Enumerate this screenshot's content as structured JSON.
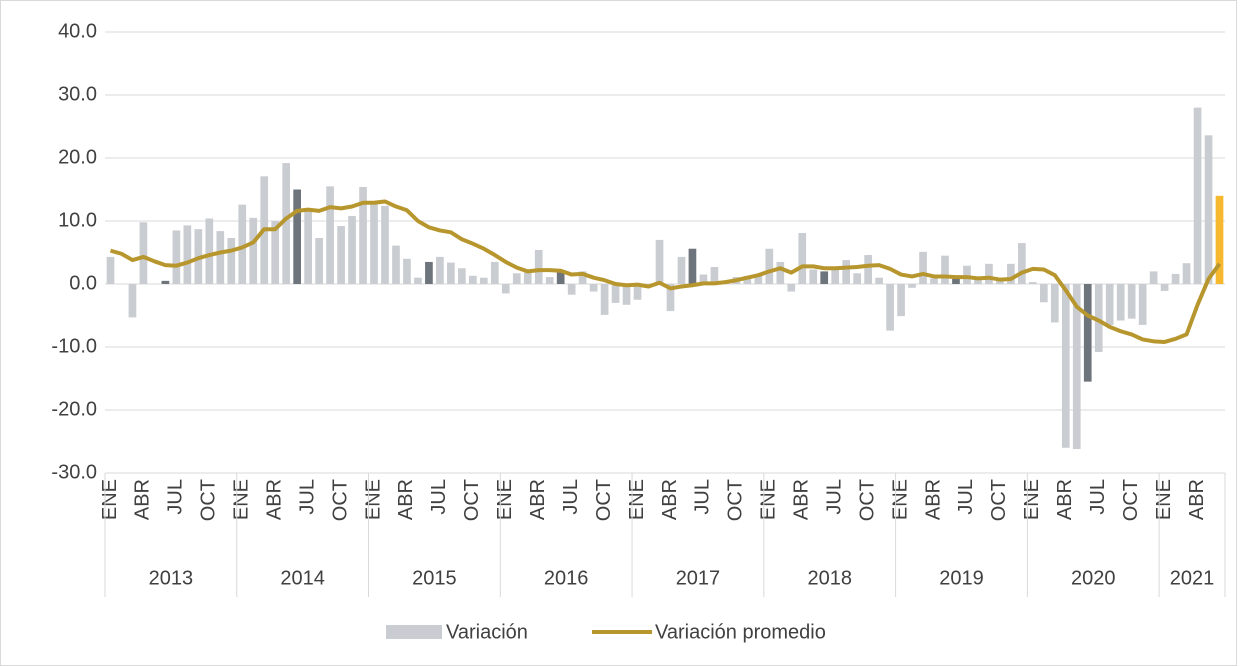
{
  "chart_data": {
    "type": "bar-line",
    "categories": [
      "ENE",
      null,
      null,
      "ABR",
      null,
      null,
      "JUL",
      null,
      null,
      "OCT",
      null,
      null,
      "ENE",
      null,
      null,
      "ABR",
      null,
      null,
      "JUL",
      null,
      null,
      "OCT",
      null,
      null,
      "ENE",
      null,
      null,
      "ABR",
      null,
      null,
      "JUL",
      null,
      null,
      "OCT",
      null,
      null,
      "ENE",
      null,
      null,
      "ABR",
      null,
      null,
      "JUL",
      null,
      null,
      "OCT",
      null,
      null,
      "ENE",
      null,
      null,
      "ABR",
      null,
      null,
      "JUL",
      null,
      null,
      "OCT",
      null,
      null,
      "ENE",
      null,
      null,
      "ABR",
      null,
      null,
      "JUL",
      null,
      null,
      "OCT",
      null,
      null,
      "ENE",
      null,
      null,
      "ABR",
      null,
      null,
      "JUL",
      null,
      null,
      "OCT",
      null,
      null,
      "ENE",
      null,
      null,
      "ABR",
      null,
      null,
      "JUL",
      null,
      null,
      "OCT",
      null,
      null,
      "ENE",
      null,
      null,
      "ABR",
      null,
      null
    ],
    "year_groups": [
      {
        "label": "2013",
        "months": 12
      },
      {
        "label": "2014",
        "months": 12
      },
      {
        "label": "2015",
        "months": 12
      },
      {
        "label": "2016",
        "months": 12
      },
      {
        "label": "2017",
        "months": 12
      },
      {
        "label": "2018",
        "months": 12
      },
      {
        "label": "2019",
        "months": 12
      },
      {
        "label": "2020",
        "months": 12
      },
      {
        "label": "2021",
        "months": 6
      }
    ],
    "series": [
      {
        "name": "Variación",
        "kind": "bar",
        "color": "#c9cdd2",
        "values": [
          4.3,
          0,
          -5.3,
          9.8,
          0,
          0.5,
          8.5,
          9.3,
          8.7,
          10.4,
          8.4,
          7.3,
          12.6,
          10.5,
          17.1,
          10.0,
          19.2,
          15.0,
          11.8,
          7.3,
          15.5,
          9.2,
          10.8,
          15.4,
          12.9,
          12.4,
          6.1,
          4.0,
          1.0,
          3.5,
          4.3,
          3.4,
          2.5,
          1.3,
          1.0,
          3.5,
          -1.5,
          1.7,
          2.0,
          5.4,
          1.1,
          2.0,
          -1.7,
          2.0,
          -1.2,
          -4.9,
          -3.0,
          -3.3,
          -2.5,
          -0.5,
          7.0,
          -4.3,
          4.3,
          5.6,
          1.5,
          2.7,
          0.3,
          1.1,
          1.3,
          1.5,
          5.6,
          3.5,
          -1.2,
          8.1,
          2.3,
          2.0,
          2.5,
          3.8,
          1.7,
          4.6,
          1.0,
          -7.4,
          -5.1,
          -0.6,
          5.1,
          0.9,
          4.5,
          1.0,
          2.9,
          1.1,
          3.2,
          0.9,
          3.2,
          6.5,
          0.3,
          -2.9,
          -6.1,
          -26.0,
          -26.2,
          -15.5,
          -10.8,
          -6.5,
          -5.8,
          -5.5,
          -6.5,
          2.0,
          -1.1,
          1.6,
          3.3,
          28.0,
          23.6,
          14.0
        ],
        "colors": [
          "#c9cdd2",
          "#c9cdd2",
          "#c9cdd2",
          "#c9cdd2",
          "#c9cdd2",
          "#6d747b",
          "#c9cdd2",
          "#c9cdd2",
          "#c9cdd2",
          "#c9cdd2",
          "#c9cdd2",
          "#c9cdd2",
          "#c9cdd2",
          "#c9cdd2",
          "#c9cdd2",
          "#c9cdd2",
          "#c9cdd2",
          "#6d747b",
          "#c9cdd2",
          "#c9cdd2",
          "#c9cdd2",
          "#c9cdd2",
          "#c9cdd2",
          "#c9cdd2",
          "#c9cdd2",
          "#c9cdd2",
          "#c9cdd2",
          "#c9cdd2",
          "#c9cdd2",
          "#6d747b",
          "#c9cdd2",
          "#c9cdd2",
          "#c9cdd2",
          "#c9cdd2",
          "#c9cdd2",
          "#c9cdd2",
          "#c9cdd2",
          "#c9cdd2",
          "#c9cdd2",
          "#c9cdd2",
          "#c9cdd2",
          "#6d747b",
          "#c9cdd2",
          "#c9cdd2",
          "#c9cdd2",
          "#c9cdd2",
          "#c9cdd2",
          "#c9cdd2",
          "#c9cdd2",
          "#c9cdd2",
          "#c9cdd2",
          "#c9cdd2",
          "#c9cdd2",
          "#6d747b",
          "#c9cdd2",
          "#c9cdd2",
          "#c9cdd2",
          "#c9cdd2",
          "#c9cdd2",
          "#c9cdd2",
          "#c9cdd2",
          "#c9cdd2",
          "#c9cdd2",
          "#c9cdd2",
          "#c9cdd2",
          "#6d747b",
          "#c9cdd2",
          "#c9cdd2",
          "#c9cdd2",
          "#c9cdd2",
          "#c9cdd2",
          "#c9cdd2",
          "#c9cdd2",
          "#c9cdd2",
          "#c9cdd2",
          "#c9cdd2",
          "#c9cdd2",
          "#6d747b",
          "#c9cdd2",
          "#c9cdd2",
          "#c9cdd2",
          "#c9cdd2",
          "#c9cdd2",
          "#c9cdd2",
          "#c9cdd2",
          "#c9cdd2",
          "#c9cdd2",
          "#c9cdd2",
          "#c9cdd2",
          "#6d747b",
          "#c9cdd2",
          "#c9cdd2",
          "#c9cdd2",
          "#c9cdd2",
          "#c9cdd2",
          "#c9cdd2",
          "#c9cdd2",
          "#c9cdd2",
          "#c9cdd2",
          "#c9cdd2",
          "#c9cdd2",
          "#f5b82e"
        ]
      },
      {
        "name": "Variación promedio",
        "kind": "line",
        "color": "#b8962e",
        "values": [
          5.3,
          4.8,
          3.8,
          4.3,
          3.6,
          3.0,
          2.9,
          3.4,
          4.1,
          4.6,
          5.0,
          5.3,
          5.8,
          6.6,
          8.7,
          8.7,
          10.4,
          11.6,
          11.8,
          11.6,
          12.2,
          12.0,
          12.3,
          12.9,
          12.9,
          13.1,
          12.3,
          11.7,
          10.0,
          9.0,
          8.5,
          8.2,
          7.1,
          6.4,
          5.6,
          4.6,
          3.5,
          2.6,
          2.0,
          2.2,
          2.2,
          2.1,
          1.5,
          1.6,
          1.0,
          0.6,
          0.0,
          -0.2,
          -0.1,
          -0.4,
          0.2,
          -0.7,
          -0.4,
          -0.2,
          0.1,
          0.1,
          0.3,
          0.6,
          1.0,
          1.4,
          2.0,
          2.5,
          1.8,
          2.8,
          2.8,
          2.5,
          2.5,
          2.6,
          2.7,
          2.9,
          3.0,
          2.4,
          1.5,
          1.2,
          1.6,
          1.2,
          1.2,
          1.1,
          1.1,
          0.9,
          1.0,
          0.7,
          0.8,
          1.8,
          2.4,
          2.3,
          1.4,
          -1.0,
          -3.6,
          -5.0,
          -5.8,
          -6.8,
          -7.5,
          -8.0,
          -8.8,
          -9.1,
          -9.2,
          -8.7,
          -8.0,
          -3.3,
          0.8,
          3.2
        ]
      }
    ],
    "ylim": [
      -30,
      40
    ],
    "yticks": [
      {
        "value": -30,
        "label": "-30.0"
      },
      {
        "value": -20,
        "label": "-20.0"
      },
      {
        "value": -10,
        "label": "-10.0"
      },
      {
        "value": 0,
        "label": "0.0"
      },
      {
        "value": 10,
        "label": "10.0"
      },
      {
        "value": 20,
        "label": "20.0"
      },
      {
        "value": 30,
        "label": "30.0"
      },
      {
        "value": 40,
        "label": "40.0"
      }
    ],
    "grid": true
  }
}
